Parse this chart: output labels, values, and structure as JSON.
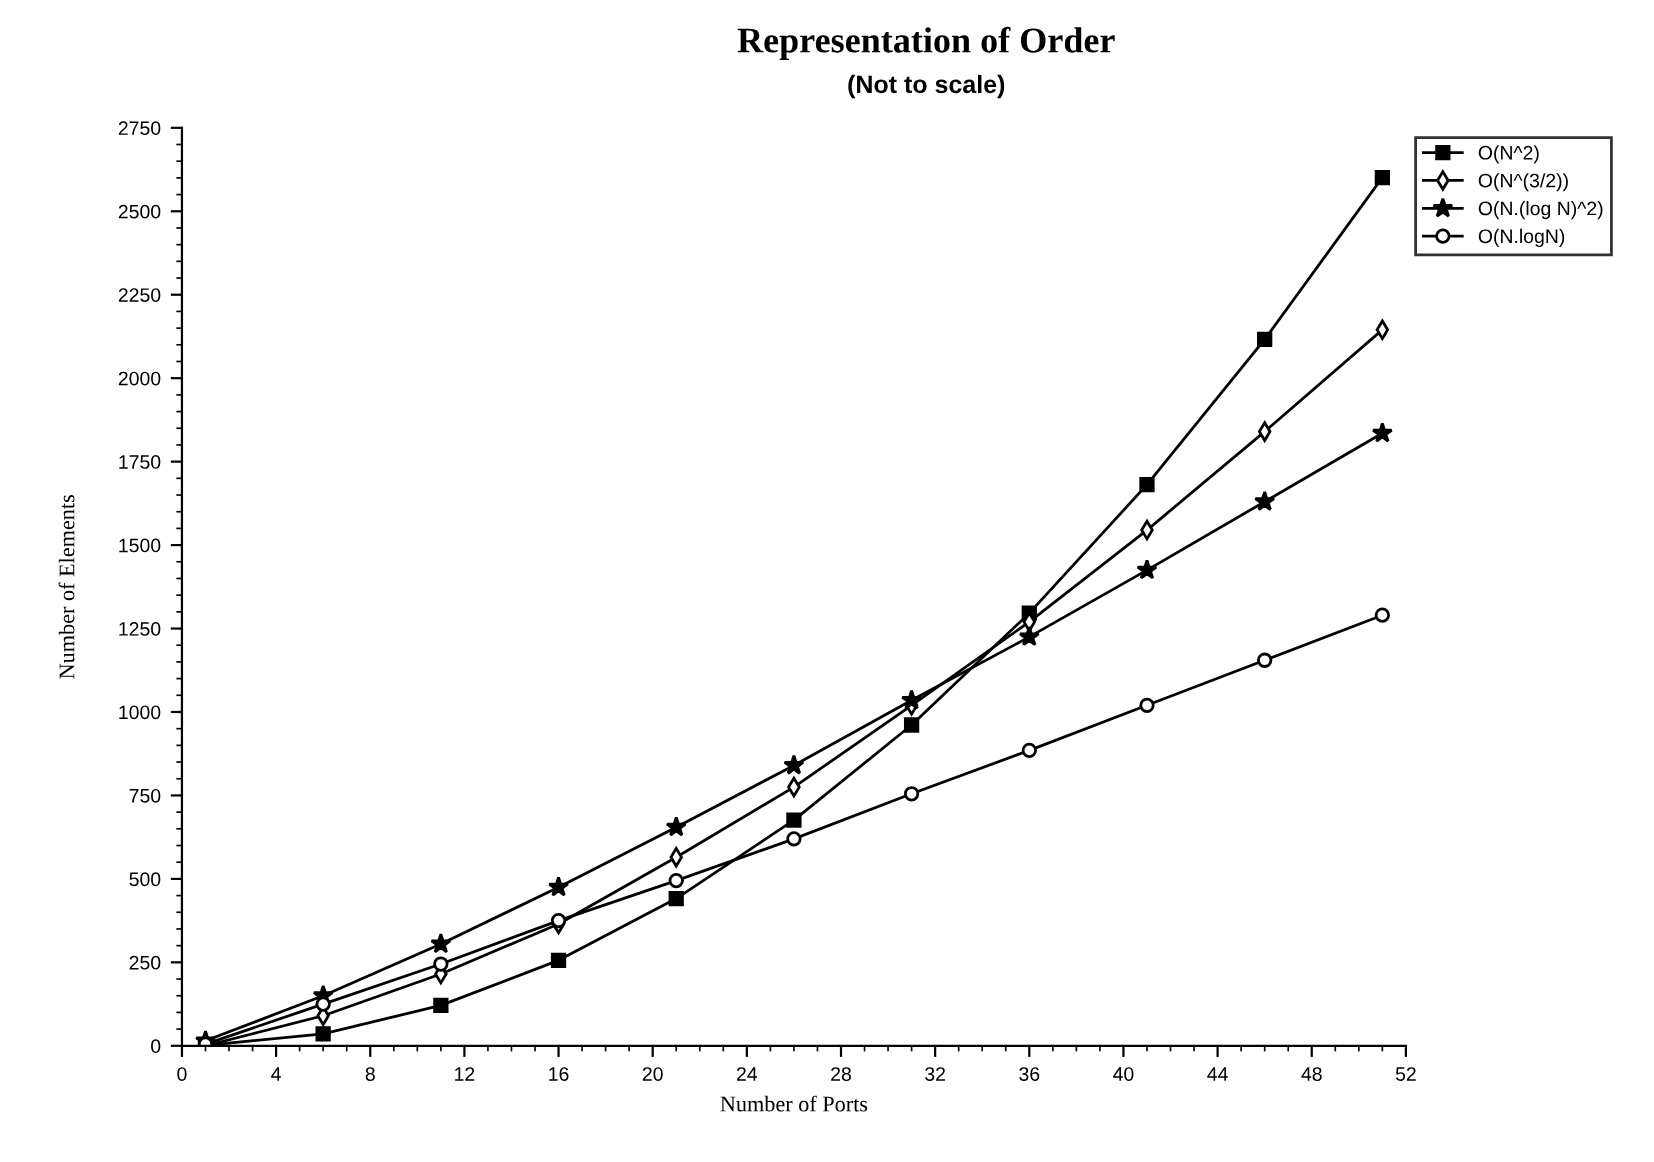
{
  "chart_data": {
    "type": "line",
    "title": "Representation of Order",
    "subtitle": "(Not to scale)",
    "xlabel": "Number of Ports",
    "ylabel": "Number of Elements",
    "x": [
      1,
      6,
      11,
      16,
      21,
      26,
      31,
      36,
      41,
      46,
      51
    ],
    "series": [
      {
        "name": "O(N^2)",
        "color": "#000000",
        "marker": "square",
        "values": [
          1,
          36,
          121,
          256,
          441,
          676,
          961,
          1296,
          1681,
          2116,
          2601
        ]
      },
      {
        "name": "O(N^(3/2))",
        "color": "#000000",
        "marker": "diamond",
        "values": [
          0,
          90,
          215,
          365,
          565,
          775,
          1020,
          1270,
          1545,
          1840,
          2145
        ]
      },
      {
        "name": "O(N.(log N)^2)",
        "color": "#000000",
        "marker": "star",
        "values": [
          15,
          150,
          305,
          475,
          655,
          840,
          1035,
          1225,
          1425,
          1630,
          1835
        ]
      },
      {
        "name": "O(N.logN)",
        "color": "#000000",
        "marker": "circle",
        "values": [
          5,
          125,
          245,
          375,
          495,
          620,
          755,
          885,
          1020,
          1155,
          1290
        ]
      }
    ],
    "xlim": [
      0,
      52
    ],
    "xticks": [
      0,
      4,
      8,
      12,
      16,
      20,
      24,
      28,
      32,
      36,
      40,
      44,
      48,
      52
    ],
    "ylim": [
      0,
      2750
    ],
    "yticks": [
      0,
      250,
      500,
      750,
      1000,
      1250,
      1500,
      1750,
      2000,
      2250,
      2500,
      2750
    ],
    "grid": false,
    "legend": "top right",
    "line_style": "solid"
  }
}
